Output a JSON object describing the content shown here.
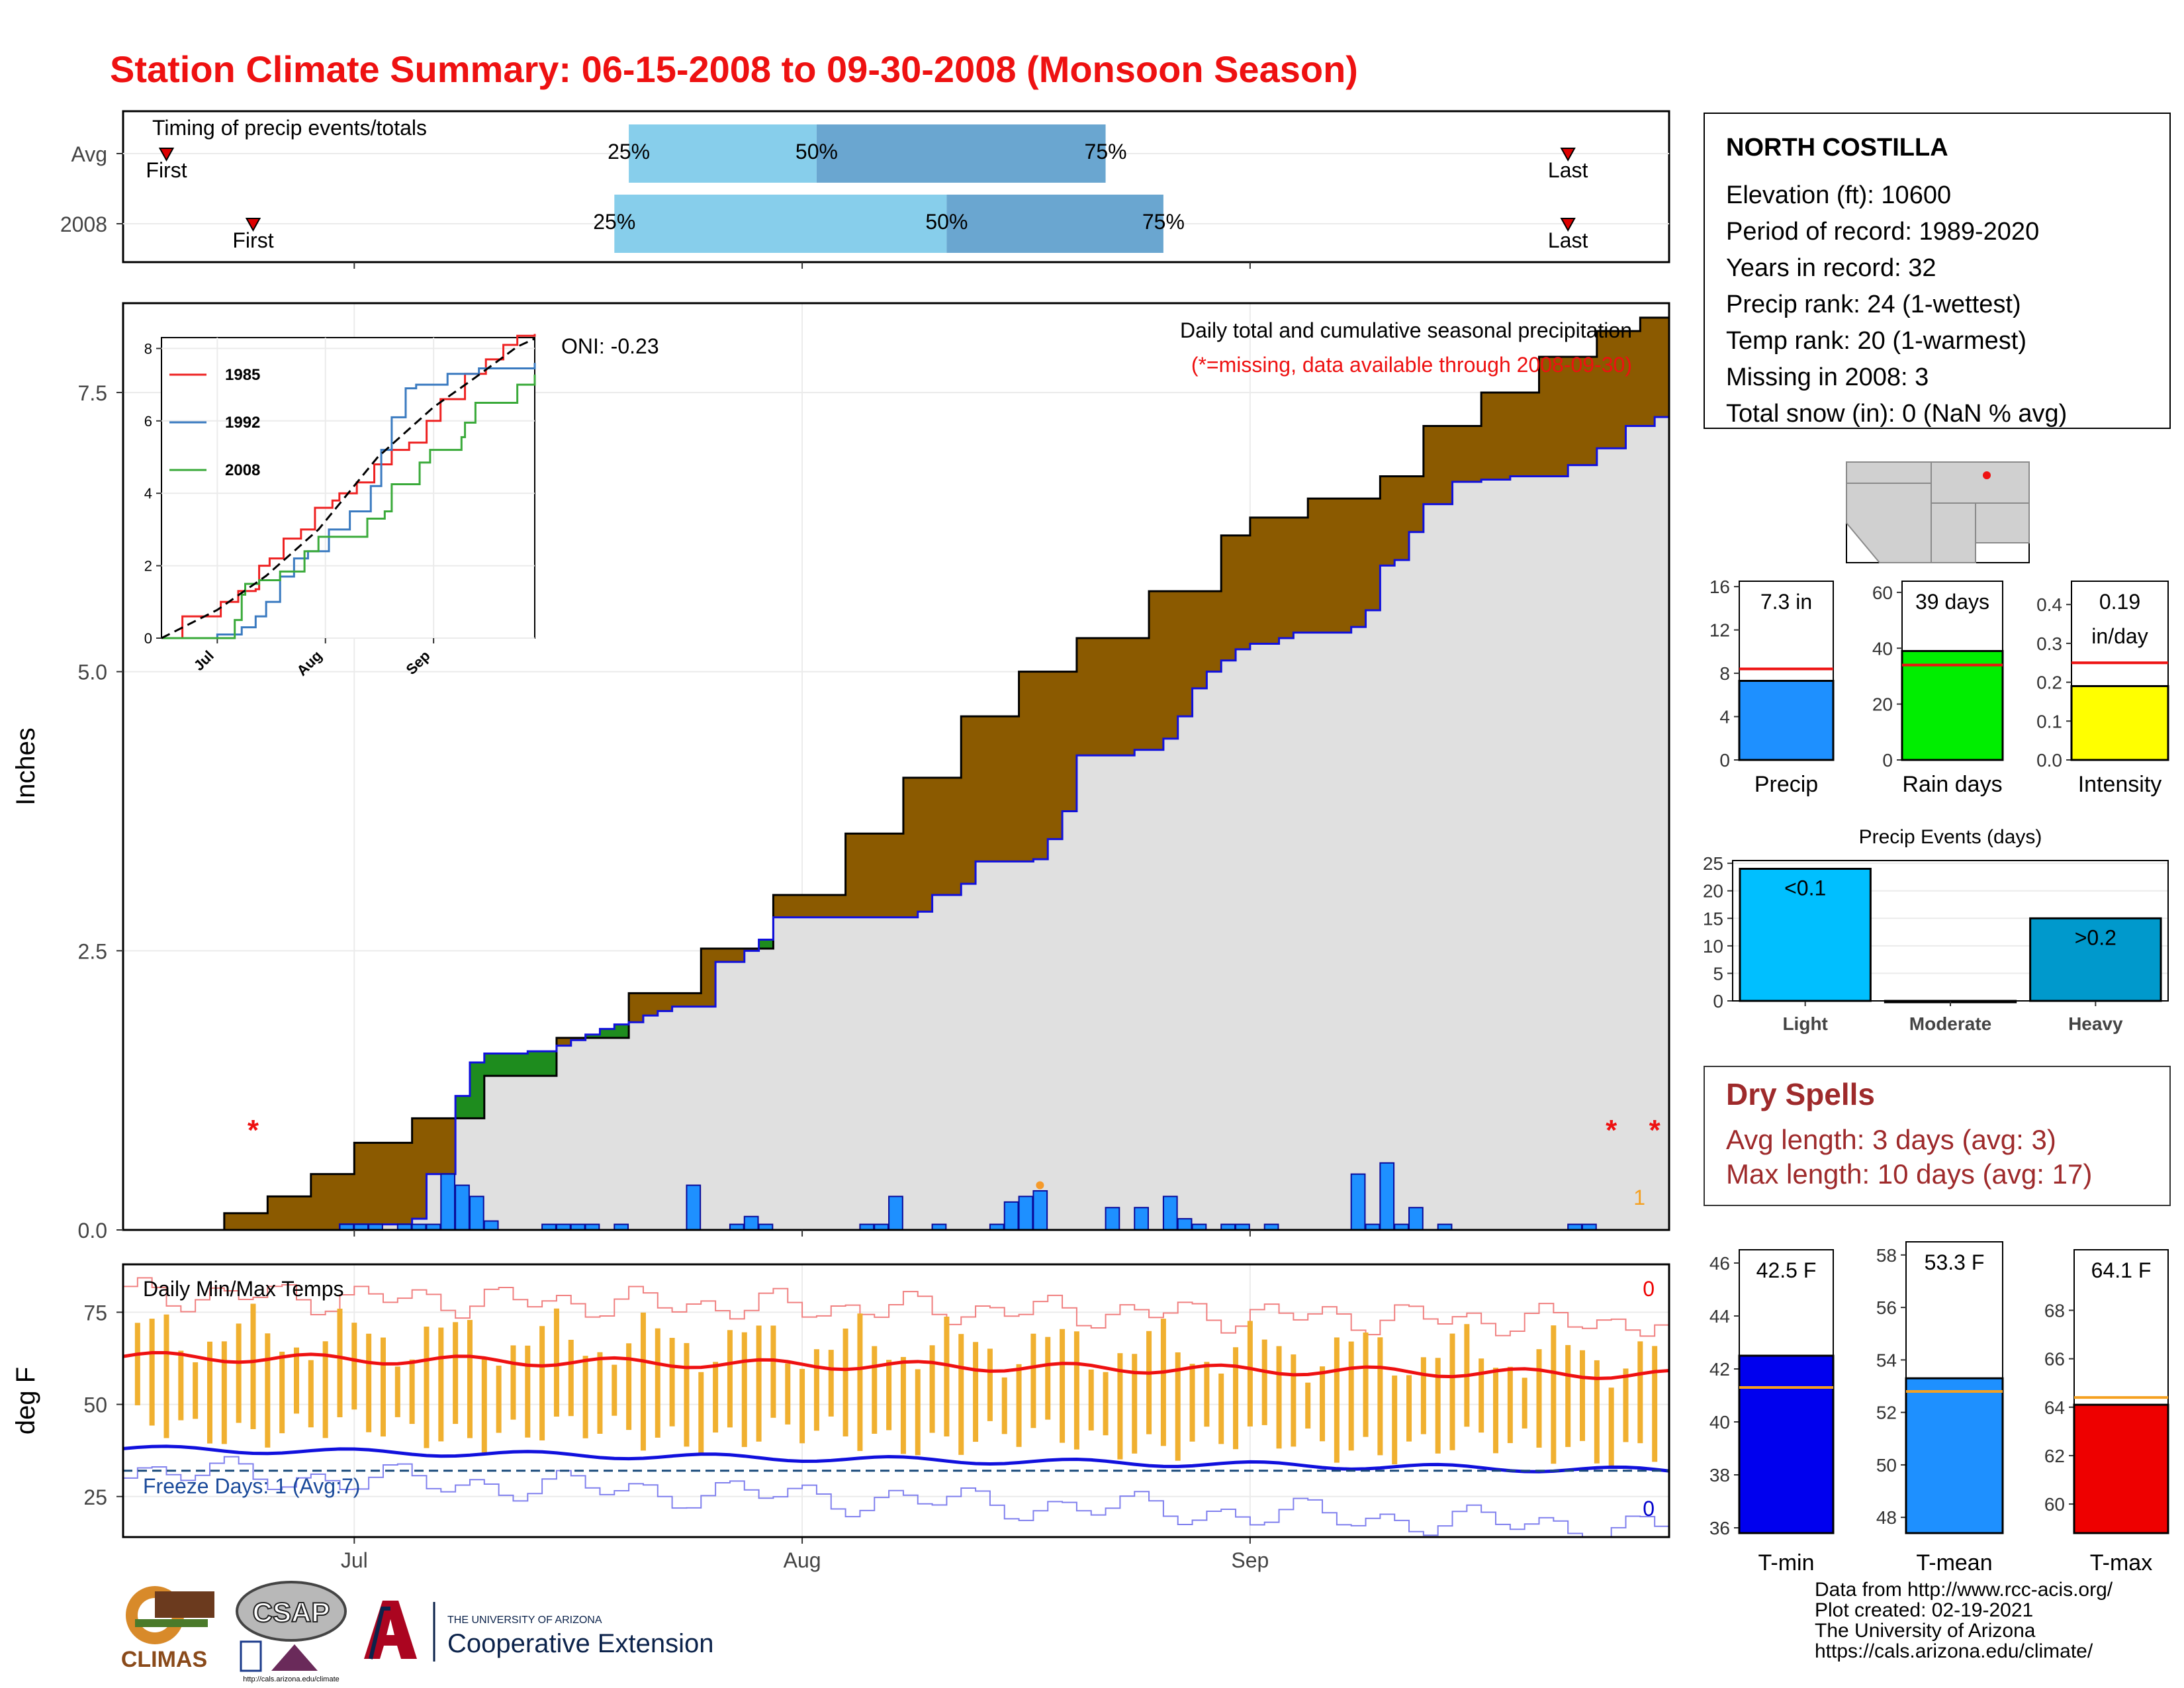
{
  "title": "Station Climate Summary: 06-15-2008 to 09-30-2008 (Monsoon Season)",
  "colors": {
    "title": "#ee1111",
    "avg_fill": "#8b5a00",
    "above_fill": "#1e8c1e",
    "base_fill": "#e0e0e0",
    "daily_bar": "#1e90ff",
    "cumul_2008": "#1010dd",
    "cumul_avg": "#000000",
    "missing": "#ee1111",
    "temp_bar": "#f0b030",
    "tmax_line": "#ee1111",
    "tmin_line": "#1010dd",
    "freeze_line": "#1a4a7a"
  },
  "station": {
    "name": "NORTH COSTILLA",
    "lines": [
      "Elevation (ft): 10600",
      "Period of record: 1989-2020",
      "Years in record: 32",
      "Precip rank: 24 (1-wettest)",
      "Temp rank: 20 (1-warmest)",
      "Missing in 2008: 3",
      "Total snow (in): 0 (NaN % avg)"
    ]
  },
  "dry_spells": {
    "title": "Dry Spells",
    "avg_length": "Avg length: 3 days (avg: 3)",
    "max_length": "Max length: 10 days (avg: 17)"
  },
  "footer": [
    "Data from http://www.rcc-acis.org/",
    "Plot created: 02-19-2021",
    "The University of Arizona",
    "https://cals.arizona.edu/climate/"
  ],
  "logos": {
    "climas": "CLIMAS",
    "csap": "CSAP",
    "csap_url": "http://cals.arizona.edu/climate",
    "ua_small": "THE UNIVERSITY OF ARIZONA",
    "coop": "Cooperative Extension"
  },
  "chart_data": [
    {
      "id": "timing",
      "type": "bar",
      "title": "Timing of precip events/totals",
      "categories": [
        "Avg",
        "2008"
      ],
      "percent_labels": [
        "25%",
        "50%",
        "75%"
      ],
      "first_label": "First",
      "last_label": "Last",
      "avg": {
        "first": "2008-06-18",
        "p25": "2008-07-20",
        "p50": "2008-08-02",
        "p75": "2008-08-22",
        "last": "2008-09-23"
      },
      "y2008": {
        "first": "2008-06-24",
        "p25": "2008-07-19",
        "p50": "2008-08-11",
        "p75": "2008-08-26",
        "last": "2008-09-23"
      }
    },
    {
      "id": "precip",
      "type": "area",
      "title": "Daily total and cumulative seasonal precipitation",
      "subtitle": "(*=missing, data available through 2008-09-30)",
      "oni": "ONI: -0.23",
      "ylabel": "Inches",
      "ylim": [
        0,
        8.3
      ],
      "yticks": [
        0,
        2.5,
        5,
        7.5
      ],
      "ytick_labels": [
        "0.0",
        "2.5",
        "5.0",
        "7.5"
      ],
      "x_ticks": [
        "Jul",
        "Aug",
        "Sep"
      ],
      "x_tick_dates": [
        "2008-07-01",
        "2008-08-01",
        "2008-09-01"
      ],
      "xlim": [
        "2008-06-15",
        "2008-09-30"
      ],
      "start_date": "2008-06-15",
      "avg_cumulative": [
        [
          "2008-06-15",
          0.0
        ],
        [
          "2008-06-22",
          0.15
        ],
        [
          "2008-06-25",
          0.3
        ],
        [
          "2008-06-28",
          0.5
        ],
        [
          "2008-07-01",
          0.78
        ],
        [
          "2008-07-05",
          1.0
        ],
        [
          "2008-07-10",
          1.38
        ],
        [
          "2008-07-15",
          1.72
        ],
        [
          "2008-07-20",
          2.12
        ],
        [
          "2008-07-25",
          2.52
        ],
        [
          "2008-07-30",
          3.0
        ],
        [
          "2008-08-04",
          3.55
        ],
        [
          "2008-08-08",
          4.05
        ],
        [
          "2008-08-12",
          4.6
        ],
        [
          "2008-08-16",
          5.0
        ],
        [
          "2008-08-20",
          5.3
        ],
        [
          "2008-08-25",
          5.72
        ],
        [
          "2008-08-30",
          6.22
        ],
        [
          "2008-09-01",
          6.38
        ],
        [
          "2008-09-05",
          6.55
        ],
        [
          "2008-09-10",
          6.75
        ],
        [
          "2008-09-13",
          7.2
        ],
        [
          "2008-09-17",
          7.5
        ],
        [
          "2008-09-21",
          7.82
        ],
        [
          "2008-09-25",
          8.05
        ],
        [
          "2008-09-28",
          8.17
        ],
        [
          "2008-09-30",
          8.27
        ]
      ],
      "cumulative_2008": [
        [
          "2008-06-15",
          0.0
        ],
        [
          "2008-06-29",
          0.0
        ],
        [
          "2008-06-30",
          0.05
        ],
        [
          "2008-07-05",
          0.1
        ],
        [
          "2008-07-06",
          0.5
        ],
        [
          "2008-07-08",
          1.2
        ],
        [
          "2008-07-09",
          1.5
        ],
        [
          "2008-07-10",
          1.58
        ],
        [
          "2008-07-13",
          1.6
        ],
        [
          "2008-07-15",
          1.65
        ],
        [
          "2008-07-16",
          1.7
        ],
        [
          "2008-07-17",
          1.75
        ],
        [
          "2008-07-18",
          1.8
        ],
        [
          "2008-07-19",
          1.84
        ],
        [
          "2008-07-20",
          1.86
        ],
        [
          "2008-07-21",
          1.92
        ],
        [
          "2008-07-22",
          1.96
        ],
        [
          "2008-07-23",
          2.0
        ],
        [
          "2008-07-26",
          2.4
        ],
        [
          "2008-07-28",
          2.5
        ],
        [
          "2008-07-29",
          2.6
        ],
        [
          "2008-07-30",
          2.8
        ],
        [
          "2008-08-08",
          2.8
        ],
        [
          "2008-08-09",
          2.85
        ],
        [
          "2008-08-10",
          3.0
        ],
        [
          "2008-08-12",
          3.1
        ],
        [
          "2008-08-13",
          3.3
        ],
        [
          "2008-08-17",
          3.32
        ],
        [
          "2008-08-18",
          3.5
        ],
        [
          "2008-08-19",
          3.75
        ],
        [
          "2008-08-20",
          4.25
        ],
        [
          "2008-08-24",
          4.3
        ],
        [
          "2008-08-26",
          4.4
        ],
        [
          "2008-08-27",
          4.6
        ],
        [
          "2008-08-28",
          4.85
        ],
        [
          "2008-08-29",
          5.0
        ],
        [
          "2008-08-30",
          5.1
        ],
        [
          "2008-08-31",
          5.2
        ],
        [
          "2008-09-01",
          5.25
        ],
        [
          "2008-09-03",
          5.3
        ],
        [
          "2008-09-04",
          5.35
        ],
        [
          "2008-09-08",
          5.4
        ],
        [
          "2008-09-09",
          5.55
        ],
        [
          "2008-09-10",
          5.95
        ],
        [
          "2008-09-11",
          6.0
        ],
        [
          "2008-09-12",
          6.25
        ],
        [
          "2008-09-13",
          6.5
        ],
        [
          "2008-09-15",
          6.7
        ],
        [
          "2008-09-17",
          6.72
        ],
        [
          "2008-09-19",
          6.75
        ],
        [
          "2008-09-23",
          6.85
        ],
        [
          "2008-09-25",
          7.0
        ],
        [
          "2008-09-27",
          7.2
        ],
        [
          "2008-09-29",
          7.28
        ],
        [
          "2008-09-30",
          7.28
        ]
      ],
      "daily_2008": [
        [
          "2008-06-30",
          0.05
        ],
        [
          "2008-07-01",
          0.05
        ],
        [
          "2008-07-02",
          0.05
        ],
        [
          "2008-07-04",
          0.05
        ],
        [
          "2008-07-05",
          0.05
        ],
        [
          "2008-07-06",
          0.05
        ],
        [
          "2008-07-07",
          0.5
        ],
        [
          "2008-07-08",
          0.4
        ],
        [
          "2008-07-09",
          0.3
        ],
        [
          "2008-07-10",
          0.08
        ],
        [
          "2008-07-14",
          0.05
        ],
        [
          "2008-07-15",
          0.05
        ],
        [
          "2008-07-16",
          0.05
        ],
        [
          "2008-07-17",
          0.05
        ],
        [
          "2008-07-19",
          0.05
        ],
        [
          "2008-07-24",
          0.4
        ],
        [
          "2008-07-27",
          0.05
        ],
        [
          "2008-07-28",
          0.12
        ],
        [
          "2008-07-29",
          0.05
        ],
        [
          "2008-08-05",
          0.05
        ],
        [
          "2008-08-06",
          0.05
        ],
        [
          "2008-08-07",
          0.3
        ],
        [
          "2008-08-10",
          0.05
        ],
        [
          "2008-08-14",
          0.05
        ],
        [
          "2008-08-15",
          0.25
        ],
        [
          "2008-08-16",
          0.3
        ],
        [
          "2008-08-17",
          0.35
        ],
        [
          "2008-08-22",
          0.2
        ],
        [
          "2008-08-24",
          0.2
        ],
        [
          "2008-08-26",
          0.3
        ],
        [
          "2008-08-27",
          0.1
        ],
        [
          "2008-08-28",
          0.05
        ],
        [
          "2008-08-30",
          0.05
        ],
        [
          "2008-08-31",
          0.05
        ],
        [
          "2008-09-02",
          0.05
        ],
        [
          "2008-09-08",
          0.5
        ],
        [
          "2008-09-09",
          0.05
        ],
        [
          "2008-09-10",
          0.6
        ],
        [
          "2008-09-11",
          0.05
        ],
        [
          "2008-09-12",
          0.2
        ],
        [
          "2008-09-14",
          0.05
        ],
        [
          "2008-09-23",
          0.05
        ],
        [
          "2008-09-24",
          0.05
        ]
      ],
      "missing_marker": "*",
      "missing_dates": [
        "2008-06-24",
        "2008-09-26",
        "2008-09-29"
      ],
      "missing_value": 0.95,
      "special_day": [
        "2008-08-17",
        0.4
      ],
      "corner_count": "1"
    },
    {
      "id": "inset",
      "type": "line",
      "series": [
        {
          "name": "1985"
        },
        {
          "name": "1992"
        },
        {
          "name": "2008"
        }
      ],
      "yticks": [
        0,
        2,
        4,
        6,
        8
      ],
      "x_ticks": [
        "Jul",
        "Aug",
        "Sep"
      ],
      "ylim": [
        0,
        8.3
      ],
      "lines": {
        "1985": [
          [
            "2008-06-15",
            0.0
          ],
          [
            "2008-06-21",
            0.6
          ],
          [
            "2008-07-01",
            0.6
          ],
          [
            "2008-07-02",
            1.0
          ],
          [
            "2008-07-06",
            1.0
          ],
          [
            "2008-07-07",
            1.3
          ],
          [
            "2008-07-12",
            1.35
          ],
          [
            "2008-07-13",
            2.0
          ],
          [
            "2008-07-16",
            2.2
          ],
          [
            "2008-07-20",
            2.75
          ],
          [
            "2008-07-25",
            3.0
          ],
          [
            "2008-07-29",
            3.6
          ],
          [
            "2008-08-03",
            3.8
          ],
          [
            "2008-08-05",
            4.0
          ],
          [
            "2008-08-10",
            4.3
          ],
          [
            "2008-08-15",
            4.8
          ],
          [
            "2008-08-20",
            5.2
          ],
          [
            "2008-08-25",
            5.4
          ],
          [
            "2008-08-30",
            6.0
          ],
          [
            "2008-09-03",
            6.6
          ],
          [
            "2008-09-10",
            7.3
          ],
          [
            "2008-09-16",
            7.7
          ],
          [
            "2008-09-21",
            8.1
          ],
          [
            "2008-09-25",
            8.35
          ],
          [
            "2008-09-30",
            8.4
          ]
        ],
        "1992": [
          [
            "2008-06-15",
            0.0
          ],
          [
            "2008-06-23",
            0.0
          ],
          [
            "2008-07-01",
            0.1
          ],
          [
            "2008-07-08",
            0.3
          ],
          [
            "2008-07-12",
            0.6
          ],
          [
            "2008-07-15",
            1.0
          ],
          [
            "2008-07-19",
            1.7
          ],
          [
            "2008-07-23",
            2.2
          ],
          [
            "2008-07-27",
            2.4
          ],
          [
            "2008-08-02",
            3.0
          ],
          [
            "2008-08-08",
            3.5
          ],
          [
            "2008-08-14",
            4.2
          ],
          [
            "2008-08-17",
            5.2
          ],
          [
            "2008-08-20",
            6.1
          ],
          [
            "2008-08-24",
            6.9
          ],
          [
            "2008-08-27",
            7.0
          ],
          [
            "2008-09-01",
            7.0
          ],
          [
            "2008-09-05",
            7.3
          ],
          [
            "2008-09-14",
            7.45
          ],
          [
            "2008-09-30",
            7.6
          ]
        ],
        "2008": [
          [
            "2008-06-15",
            0.0
          ],
          [
            "2008-06-29",
            0.0
          ],
          [
            "2008-07-06",
            0.5
          ],
          [
            "2008-07-08",
            1.2
          ],
          [
            "2008-07-09",
            1.5
          ],
          [
            "2008-07-13",
            1.6
          ],
          [
            "2008-07-19",
            1.84
          ],
          [
            "2008-07-26",
            2.4
          ],
          [
            "2008-07-30",
            2.8
          ],
          [
            "2008-08-08",
            2.8
          ],
          [
            "2008-08-13",
            3.3
          ],
          [
            "2008-08-18",
            3.5
          ],
          [
            "2008-08-20",
            4.25
          ],
          [
            "2008-08-28",
            4.85
          ],
          [
            "2008-08-31",
            5.2
          ],
          [
            "2008-09-09",
            5.55
          ],
          [
            "2008-09-10",
            5.95
          ],
          [
            "2008-09-13",
            6.5
          ],
          [
            "2008-09-25",
            7.0
          ],
          [
            "2008-09-30",
            7.28
          ]
        ],
        "avg": [
          [
            "2008-06-15",
            0.0
          ],
          [
            "2008-07-01",
            0.78
          ],
          [
            "2008-07-15",
            1.72
          ],
          [
            "2008-07-30",
            3.0
          ],
          [
            "2008-08-16",
            5.0
          ],
          [
            "2008-09-01",
            6.38
          ],
          [
            "2008-09-13",
            7.2
          ],
          [
            "2008-09-25",
            8.05
          ],
          [
            "2008-09-30",
            8.27
          ]
        ]
      }
    },
    {
      "id": "temps",
      "type": "line",
      "title": "Daily Min/Max Temps",
      "ylabel": "deg F",
      "ylim": [
        14,
        88
      ],
      "yticks": [
        25,
        50,
        75
      ],
      "freeze_label": "Freeze Days: 1 (Avg:7)",
      "freeze_line": 32,
      "top_right_count": "0",
      "bottom_right_count": "0",
      "tmax_avg_range": [
        63,
        58
      ],
      "tmin_avg_range": [
        38,
        32
      ],
      "record_high_range": [
        80,
        72
      ],
      "record_low_range": [
        32,
        16
      ]
    },
    {
      "id": "season_bars",
      "type": "bar",
      "panels": [
        {
          "label": "Precip",
          "value": 7.3,
          "avg": 8.4,
          "top_label": "7.3 in",
          "yticks": [
            0,
            4,
            8,
            12,
            16
          ],
          "ylim": [
            0,
            16.5
          ],
          "color": "#1e90ff"
        },
        {
          "label": "Rain days",
          "value": 39,
          "avg": 34,
          "top_label": "39 days",
          "yticks": [
            0,
            20,
            40,
            60
          ],
          "ylim": [
            0,
            64
          ],
          "color": "#00ee00"
        },
        {
          "label": "Intensity",
          "value": 0.19,
          "avg": 0.25,
          "top_label": "0.19",
          "top_label2": "in/day",
          "yticks": [
            0.0,
            0.1,
            0.2,
            0.3,
            0.4
          ],
          "ylim": [
            0,
            0.46
          ],
          "color": "#ffff00"
        }
      ]
    },
    {
      "id": "events",
      "type": "bar",
      "title": "Precip Events (days)",
      "categories": [
        "Light",
        "Moderate",
        "Heavy"
      ],
      "values": [
        24,
        0,
        15
      ],
      "bar_labels": [
        "<0.1",
        "",
        ">0.2"
      ],
      "yticks": [
        0,
        5,
        10,
        15,
        20,
        25
      ],
      "ylim": [
        0,
        25.5
      ],
      "colors": [
        "#00bfff",
        "#000000",
        "#0099cc"
      ]
    },
    {
      "id": "temp_bars",
      "type": "bar",
      "panels": [
        {
          "label": "T-min",
          "value": 42.5,
          "avg": 41.3,
          "top_label": "42.5 F",
          "yticks": [
            36,
            38,
            40,
            42,
            44,
            46
          ],
          "ylim": [
            35.8,
            46.5
          ],
          "color": "#0000ee"
        },
        {
          "label": "T-mean",
          "value": 53.3,
          "avg": 52.8,
          "top_label": "53.3 F",
          "yticks": [
            48,
            50,
            52,
            54,
            56,
            58
          ],
          "ylim": [
            47.4,
            58.5
          ],
          "color": "#1e90ff"
        },
        {
          "label": "T-max",
          "value": 64.1,
          "avg": 64.4,
          "top_label": "64.1 F",
          "yticks": [
            60,
            62,
            64,
            66,
            68
          ],
          "ylim": [
            58.8,
            70.5
          ],
          "color": "#ee0000"
        }
      ]
    }
  ]
}
